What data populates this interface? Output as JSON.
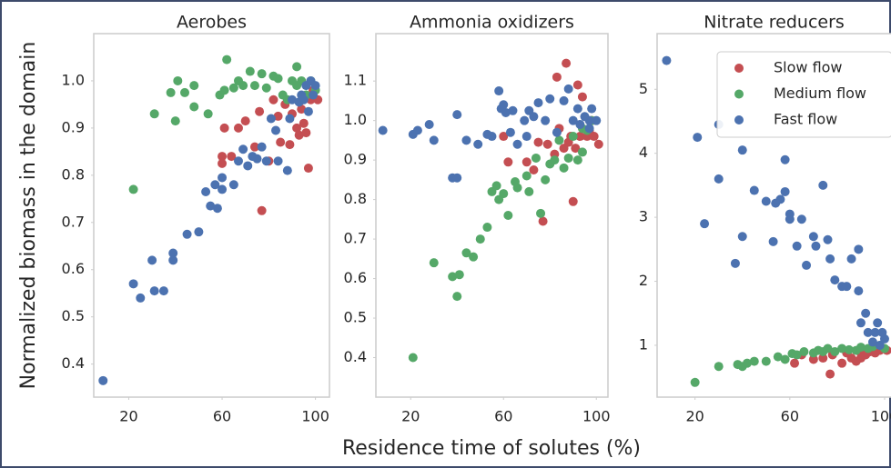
{
  "chart_data": [
    {
      "type": "scatter",
      "title": "Aerobes",
      "ylabel": "Normalized biomass in the domain",
      "xlim": [
        5,
        106
      ],
      "ylim": [
        0.33,
        1.1
      ],
      "xticks": [
        20,
        60,
        100
      ],
      "yticks": [
        0.4,
        0.5,
        0.6,
        0.7,
        0.8,
        0.9,
        {
          "value": 1.0,
          "label": "1.0"
        }
      ],
      "grid": false,
      "series": [
        {
          "name": "Slow flow",
          "color": "#c44e52",
          "x": [
            61,
            60,
            60,
            64,
            67,
            70,
            74,
            76,
            77,
            80,
            82,
            84,
            85,
            87,
            89,
            90,
            92,
            93,
            95,
            96,
            97,
            98,
            99,
            101,
            94
          ],
          "values": [
            0.9,
            0.84,
            0.825,
            0.84,
            0.9,
            0.915,
            0.86,
            0.935,
            0.725,
            0.83,
            0.96,
            0.925,
            0.87,
            0.95,
            0.865,
            0.93,
            0.9,
            0.885,
            0.91,
            0.89,
            0.815,
            0.96,
            0.98,
            0.96,
            0.94
          ]
        },
        {
          "name": "Medium flow",
          "color": "#55a868",
          "x": [
            22,
            31,
            38,
            40,
            41,
            44,
            48,
            48,
            54,
            59,
            61,
            62,
            65,
            67,
            69,
            72,
            74,
            77,
            79,
            82,
            84,
            86,
            90,
            92,
            94,
            96,
            98,
            100,
            88,
            92
          ],
          "values": [
            0.77,
            0.93,
            0.975,
            0.915,
            1.0,
            0.975,
            0.99,
            0.945,
            0.93,
            0.97,
            0.98,
            1.045,
            0.985,
            1.0,
            0.99,
            1.02,
            0.99,
            1.015,
            0.985,
            1.01,
            1.005,
            0.97,
            1.0,
            1.03,
            1.0,
            0.97,
            1.0,
            0.98,
            0.96,
            0.99
          ]
        },
        {
          "name": "Fast flow",
          "color": "#4c72b0",
          "x": [
            9,
            22,
            25,
            30,
            31,
            35,
            39,
            39,
            45,
            50,
            53,
            55,
            57,
            58,
            60,
            60,
            65,
            67,
            69,
            71,
            73,
            75,
            77,
            79,
            81,
            83,
            84,
            88,
            89,
            90,
            93,
            94,
            96,
            97,
            98,
            99,
            100,
            95
          ],
          "values": [
            0.365,
            0.57,
            0.54,
            0.62,
            0.555,
            0.555,
            0.635,
            0.62,
            0.675,
            0.68,
            0.765,
            0.735,
            0.78,
            0.73,
            0.795,
            0.77,
            0.78,
            0.83,
            0.855,
            0.82,
            0.84,
            0.835,
            0.86,
            0.83,
            0.92,
            0.895,
            0.83,
            0.81,
            0.92,
            0.96,
            0.955,
            0.97,
            0.99,
            0.935,
            1.0,
            0.97,
            0.99,
            0.96
          ]
        }
      ]
    },
    {
      "type": "scatter",
      "title": "Ammonia oxidizers",
      "xlabel": "Residence time of solutes (%)",
      "xlim": [
        5,
        105
      ],
      "ylim": [
        0.3,
        1.22
      ],
      "xticks": [
        20,
        60,
        100
      ],
      "yticks": [
        0.4,
        0.5,
        0.6,
        0.7,
        0.8,
        0.9,
        {
          "value": 1.0,
          "label": "1.0"
        },
        1.1
      ],
      "grid": false,
      "series": [
        {
          "name": "Slow flow",
          "color": "#c44e52",
          "x": [
            60,
            62,
            70,
            73,
            75,
            77,
            79,
            82,
            83,
            84,
            86,
            87,
            88,
            89,
            90,
            91,
            92,
            93,
            94,
            96,
            97,
            99,
            101,
            98
          ],
          "values": [
            0.96,
            0.895,
            0.895,
            0.875,
            0.945,
            0.745,
            0.94,
            0.915,
            1.11,
            0.98,
            0.93,
            1.145,
            0.945,
            0.96,
            0.795,
            0.93,
            1.09,
            0.96,
            1.06,
            0.96,
            0.975,
            0.96,
            0.94,
            1.0
          ]
        },
        {
          "name": "Medium flow",
          "color": "#55a868",
          "x": [
            21,
            30,
            38,
            40,
            41,
            44,
            47,
            50,
            53,
            55,
            57,
            58,
            60,
            62,
            65,
            66,
            70,
            71,
            74,
            76,
            78,
            80,
            82,
            84,
            86,
            88,
            90,
            92,
            94,
            96,
            98,
            94
          ],
          "values": [
            0.4,
            0.64,
            0.605,
            0.555,
            0.61,
            0.665,
            0.655,
            0.7,
            0.73,
            0.82,
            0.835,
            0.8,
            0.815,
            0.76,
            0.845,
            0.83,
            0.86,
            0.82,
            0.905,
            0.765,
            0.85,
            0.89,
            0.9,
            0.95,
            0.88,
            0.905,
            0.96,
            0.9,
            0.98,
            0.975,
            1.0,
            0.92
          ]
        },
        {
          "name": "Fast flow",
          "color": "#4c72b0",
          "x": [
            8,
            21,
            23,
            28,
            30,
            38,
            40,
            40,
            44,
            49,
            53,
            55,
            58,
            59,
            60,
            61,
            63,
            64,
            66,
            69,
            70,
            71,
            73,
            75,
            78,
            80,
            83,
            86,
            88,
            90,
            92,
            93,
            95,
            97,
            98,
            100,
            97
          ],
          "values": [
            0.975,
            0.965,
            0.975,
            0.99,
            0.95,
            0.855,
            0.855,
            1.015,
            0.95,
            0.94,
            0.965,
            0.96,
            1.075,
            1.03,
            1.04,
            1.02,
            0.97,
            1.025,
            0.94,
            1.0,
            0.96,
            1.025,
            1.01,
            1.045,
            1.0,
            1.055,
            0.97,
            1.05,
            1.08,
            1.0,
            1.03,
            0.99,
            1.01,
            1.0,
            1.03,
            1.0,
            0.98
          ]
        }
      ]
    },
    {
      "type": "scatter",
      "title": "Nitrate reducers",
      "legend": "upper right",
      "xlim": [
        4,
        105
      ],
      "ylim": [
        0.19,
        5.87
      ],
      "xticks": [
        20,
        60,
        100
      ],
      "yticks": [
        1,
        2,
        3,
        4,
        5
      ],
      "grid": false,
      "series": [
        {
          "name": "Slow flow",
          "color": "#c44e52",
          "x": [
            62,
            65,
            70,
            74,
            77,
            78,
            82,
            84,
            86,
            88,
            90,
            92,
            94,
            96,
            98,
            101,
            90
          ],
          "values": [
            0.72,
            0.85,
            0.78,
            0.8,
            0.55,
            0.85,
            0.72,
            0.88,
            0.8,
            0.75,
            0.8,
            0.85,
            0.9,
            0.88,
            0.92,
            0.92,
            0.88
          ]
        },
        {
          "name": "Medium flow",
          "color": "#55a868",
          "x": [
            20,
            30,
            38,
            40,
            42,
            45,
            50,
            55,
            58,
            61,
            63,
            66,
            70,
            72,
            74,
            76,
            79,
            82,
            85,
            88,
            90,
            93,
            95,
            98,
            100
          ],
          "values": [
            0.42,
            0.67,
            0.7,
            0.67,
            0.72,
            0.75,
            0.75,
            0.82,
            0.78,
            0.87,
            0.85,
            0.9,
            0.88,
            0.92,
            0.9,
            0.95,
            0.9,
            0.95,
            0.93,
            0.92,
            0.97,
            0.95,
            0.98,
            1.0,
            0.95
          ]
        },
        {
          "name": "Fast flow",
          "color": "#4c72b0",
          "x": [
            8,
            21,
            24,
            30,
            30,
            37,
            40,
            40,
            45,
            50,
            53,
            54,
            56,
            58,
            58,
            60,
            60,
            63,
            65,
            67,
            70,
            71,
            74,
            76,
            77,
            79,
            82,
            84,
            86,
            89,
            89,
            90,
            92,
            93,
            95,
            96,
            97,
            98,
            100,
            99
          ],
          "values": [
            5.45,
            4.25,
            2.9,
            4.45,
            3.6,
            2.28,
            4.05,
            2.7,
            3.42,
            3.25,
            2.62,
            3.22,
            3.28,
            3.4,
            3.9,
            3.05,
            2.97,
            2.55,
            2.97,
            2.25,
            2.7,
            2.55,
            3.5,
            2.65,
            2.35,
            2.02,
            1.92,
            1.92,
            2.35,
            1.85,
            2.5,
            1.35,
            1.5,
            1.2,
            1.05,
            1.2,
            1.35,
            1.0,
            1.1,
            1.2
          ]
        }
      ]
    }
  ]
}
